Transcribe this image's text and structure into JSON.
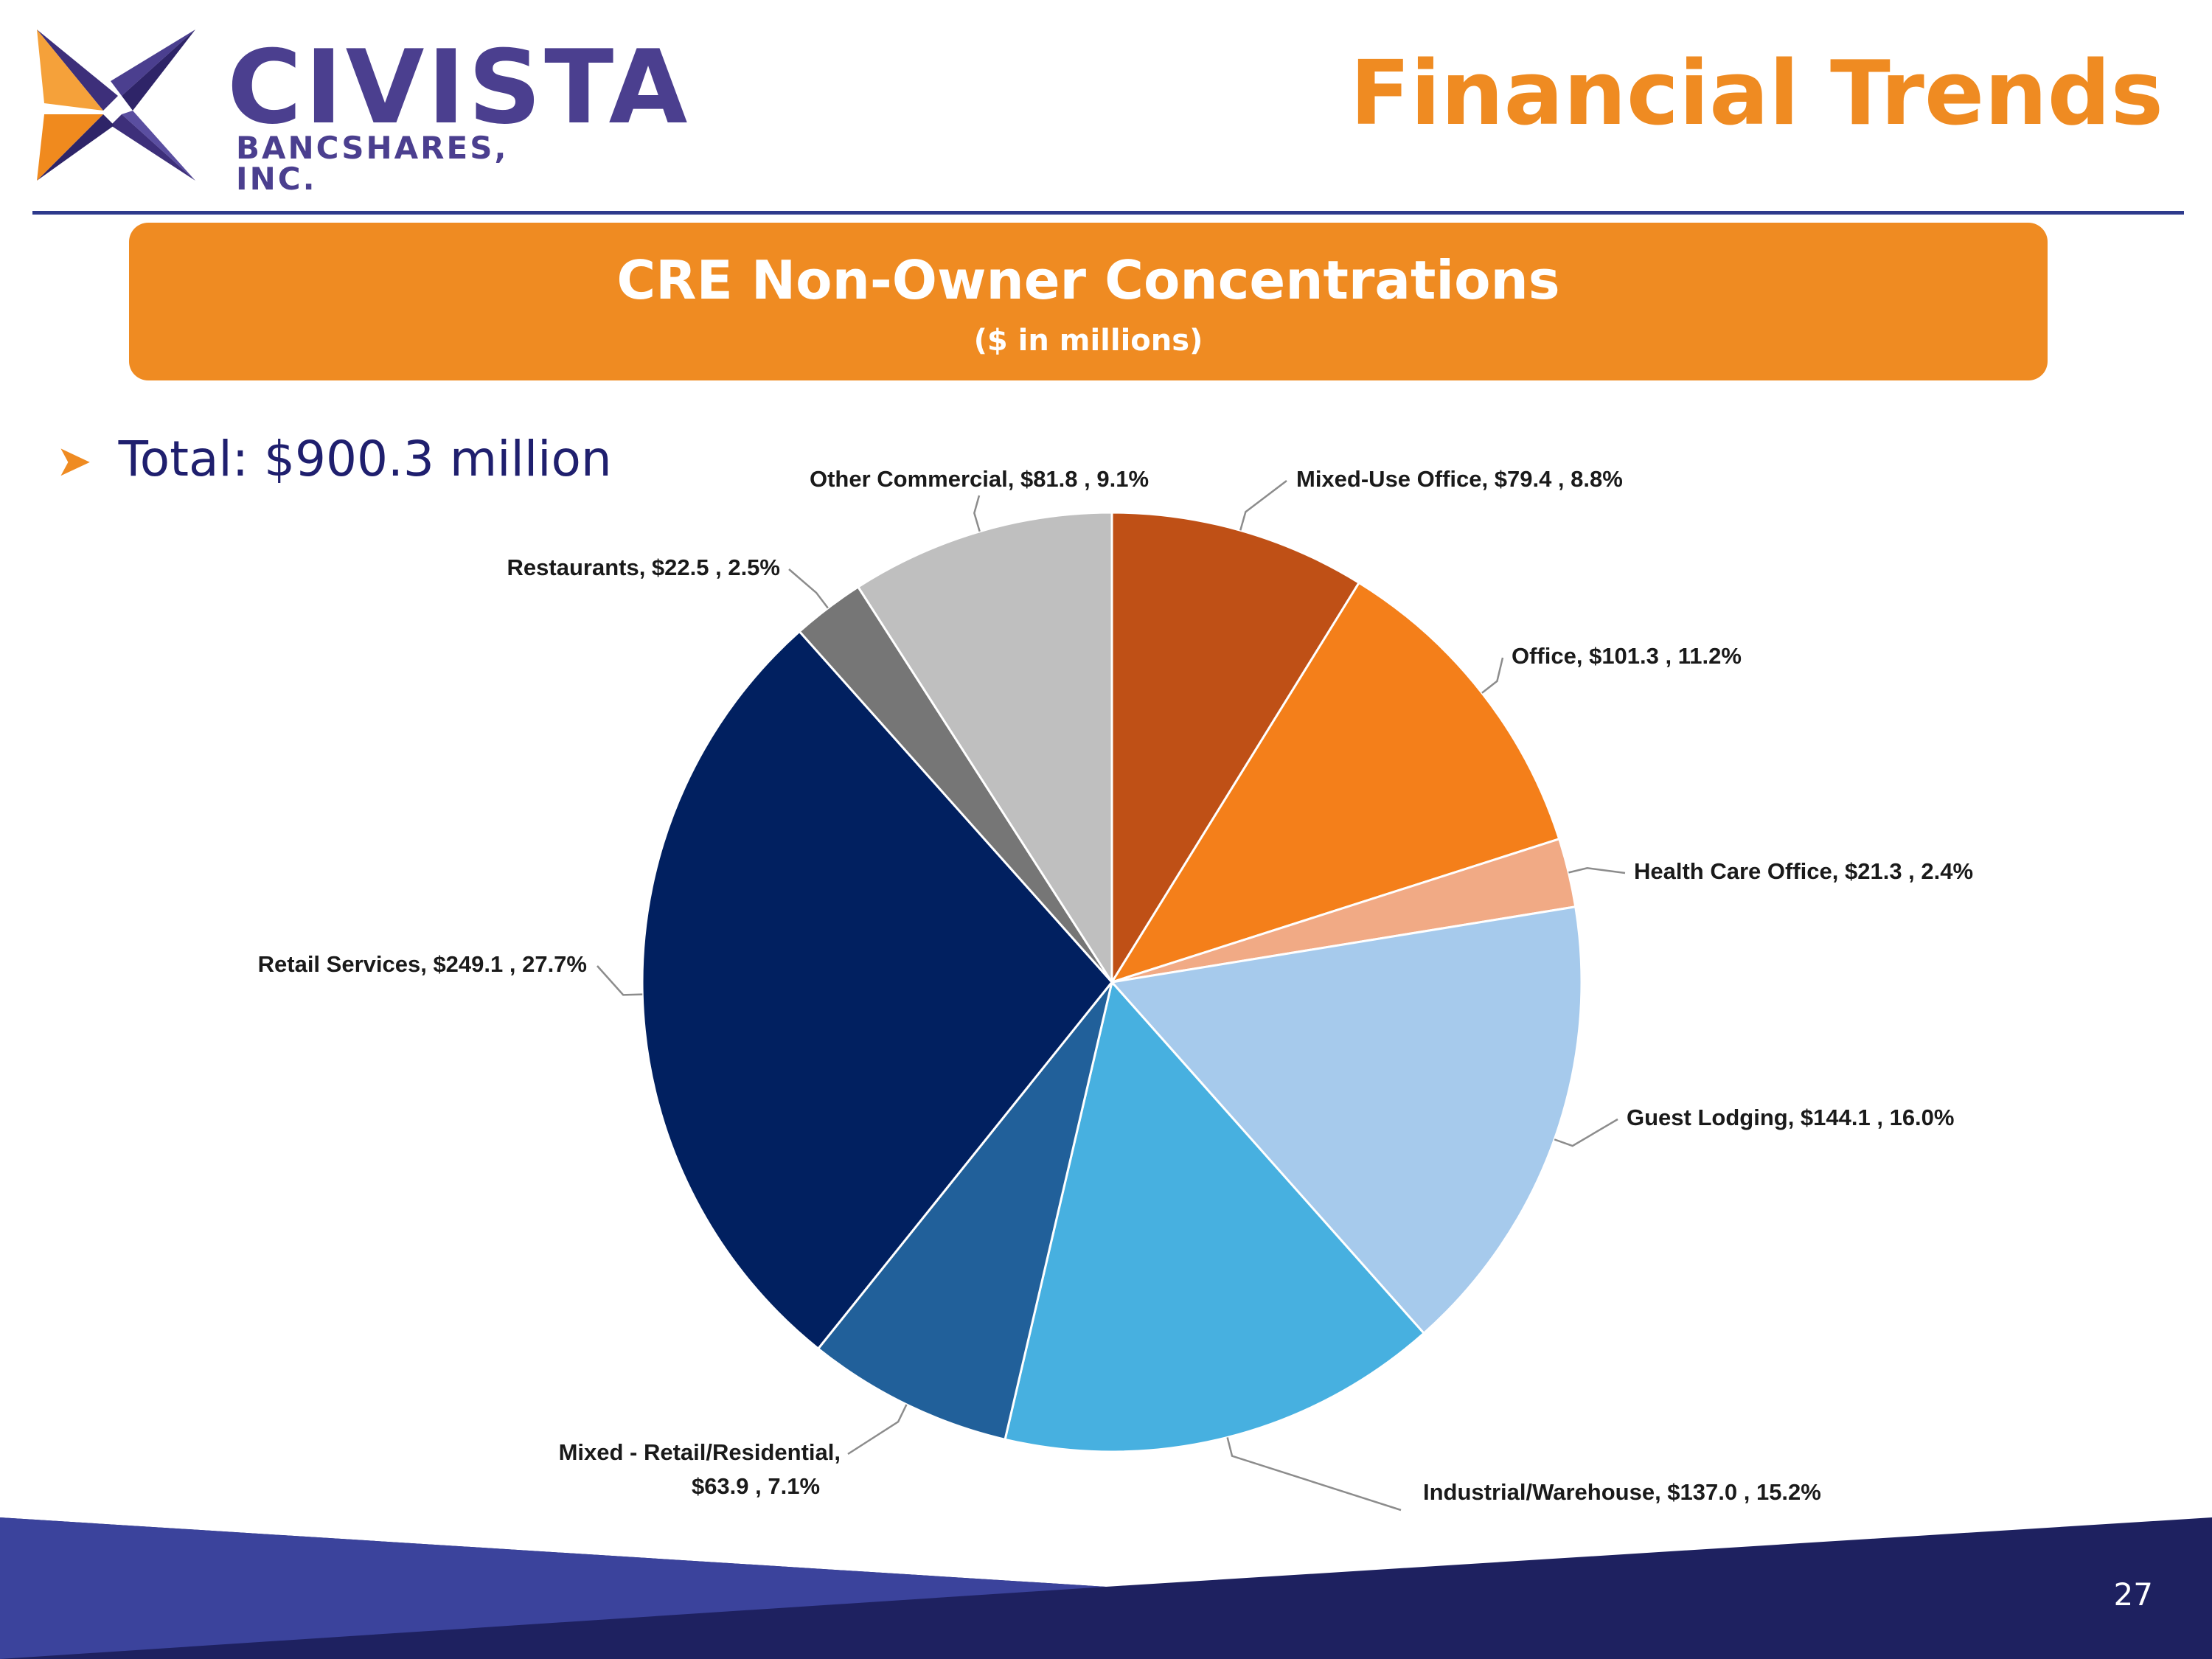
{
  "header": {
    "logo_name": "CIVISTA",
    "logo_sub": "BANCSHARES, INC.",
    "title": "Financial Trends"
  },
  "banner": {
    "title": "CRE Non-Owner Concentrations",
    "subtitle": "($ in millions)"
  },
  "summary": {
    "total": "Total: $900.3 million"
  },
  "footer": {
    "page_number": "27"
  },
  "colors": {
    "accent_orange": "#ef8b22",
    "navy": "#1f1f6e",
    "rule_blue": "#2e3a8c",
    "footer_light": "#3b439c",
    "footer_dark": "#1e2160"
  },
  "chart_data": {
    "type": "pie",
    "title": "CRE Non-Owner Concentrations",
    "subtitle": "($ in millions)",
    "start": "12 o'clock, clockwise",
    "slices": [
      {
        "name": "Mixed-Use Office",
        "value": 79.4,
        "percent": 8.8,
        "label": "Mixed-Use Office,  $79.4 , 8.8%",
        "color": "#bf5016"
      },
      {
        "name": "Office",
        "value": 101.3,
        "percent": 11.2,
        "label": "Office,  $101.3 , 11.2%",
        "color": "#f47f1a"
      },
      {
        "name": "Health Care Office",
        "value": 21.3,
        "percent": 2.4,
        "label": "Health Care Office,  $21.3 , 2.4%",
        "color": "#f1aa85"
      },
      {
        "name": "Guest Lodging",
        "value": 144.1,
        "percent": 16.0,
        "label": "Guest Lodging,  $144.1 , 16.0%",
        "color": "#a6caec"
      },
      {
        "name": "Industrial/Warehouse",
        "value": 137.0,
        "percent": 15.2,
        "label": "Industrial/Warehouse,  $137.0 , 15.2%",
        "color": "#47b0e0"
      },
      {
        "name": "Mixed - Retail/Residential",
        "value": 63.9,
        "percent": 7.1,
        "label": "Mixed - Retail/Residential,",
        "label2": "$63.9 , 7.1%",
        "color": "#21609a"
      },
      {
        "name": "Retail Services",
        "value": 249.1,
        "percent": 27.7,
        "label": "Retail Services,  $249.1 , 27.7%",
        "color": "#012060"
      },
      {
        "name": "Restaurants",
        "value": 22.5,
        "percent": 2.5,
        "label": "Restaurants,  $22.5 , 2.5%",
        "color": "#767676"
      },
      {
        "name": "Other Commercial",
        "value": 81.8,
        "percent": 9.1,
        "label": "Other Commercial,  $81.8 , 9.1%",
        "color": "#bfbfbf"
      }
    ]
  }
}
